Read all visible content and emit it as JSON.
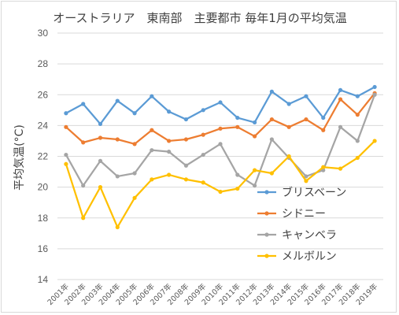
{
  "chart_data": {
    "type": "line",
    "title": "オーストラリア　東南部　主要都市 毎年1月の平均気温",
    "ylabel": "平均気温(°C)",
    "xlabel": "",
    "ylim": [
      14,
      30
    ],
    "yticks": [
      14,
      16,
      18,
      20,
      22,
      24,
      26,
      28,
      30
    ],
    "grid": true,
    "legend_position": "right",
    "categories": [
      "2001年",
      "2002年",
      "2003年",
      "2004年",
      "2005年",
      "2006年",
      "2007年",
      "2008年",
      "2009年",
      "2010年",
      "2011年",
      "2012年",
      "2013年",
      "2014年",
      "2015年",
      "2016年",
      "2017年",
      "2018年",
      "2019年"
    ],
    "series": [
      {
        "name": "ブリスベーン",
        "color": "#5b9bd5",
        "values": [
          24.8,
          25.4,
          24.1,
          25.6,
          24.8,
          25.9,
          24.9,
          24.4,
          25.0,
          25.5,
          24.5,
          24.2,
          26.2,
          25.4,
          25.9,
          24.5,
          26.3,
          25.9,
          26.5
        ]
      },
      {
        "name": "シドニー",
        "color": "#ed7d31",
        "values": [
          23.9,
          22.9,
          23.2,
          23.1,
          22.8,
          23.7,
          23.0,
          23.1,
          23.4,
          23.8,
          23.9,
          23.3,
          24.4,
          23.9,
          24.4,
          23.7,
          25.7,
          24.7,
          26.1
        ]
      },
      {
        "name": "キャンベラ",
        "color": "#a5a5a5",
        "values": [
          22.1,
          20.1,
          21.7,
          20.7,
          20.9,
          22.4,
          22.3,
          21.4,
          22.1,
          22.8,
          20.8,
          20.1,
          23.1,
          21.9,
          20.7,
          21.1,
          23.9,
          23.0,
          26.0
        ]
      },
      {
        "name": "メルボルン",
        "color": "#ffc000",
        "values": [
          21.5,
          18.0,
          20.0,
          17.4,
          19.3,
          20.5,
          20.8,
          20.5,
          20.3,
          19.7,
          19.9,
          21.1,
          20.9,
          22.0,
          20.4,
          21.3,
          21.2,
          21.9,
          23.0
        ]
      }
    ]
  }
}
